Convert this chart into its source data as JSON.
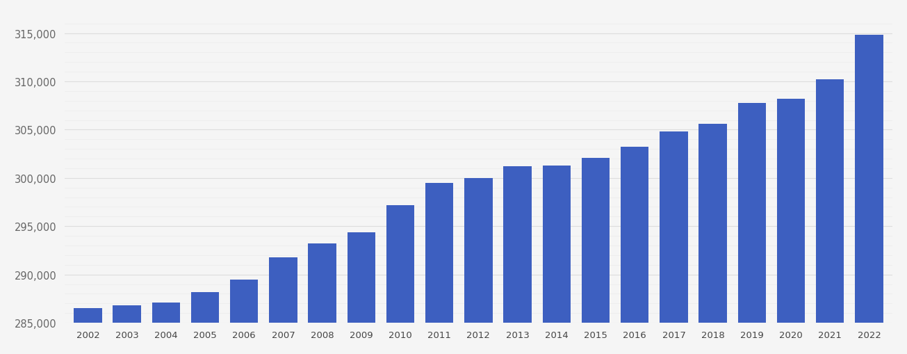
{
  "years": [
    2002,
    2003,
    2004,
    2005,
    2006,
    2007,
    2008,
    2009,
    2010,
    2011,
    2012,
    2013,
    2014,
    2015,
    2016,
    2017,
    2018,
    2019,
    2020,
    2021,
    2022
  ],
  "values": [
    286500,
    286800,
    287100,
    288200,
    289500,
    291800,
    293200,
    294400,
    297200,
    299500,
    300000,
    301200,
    301300,
    302100,
    303200,
    304800,
    305600,
    307800,
    308200,
    310200,
    314800
  ],
  "bar_color": "#3d5fc0",
  "background_color": "#f5f5f5",
  "grid_color": "#dddddd",
  "ylim": [
    285000,
    317000
  ],
  "yticks_major": [
    285000,
    290000,
    295000,
    300000,
    305000,
    310000,
    315000
  ],
  "yticks_minor": [
    286000,
    287000,
    288000,
    289000,
    291000,
    292000,
    293000,
    294000,
    296000,
    297000,
    298000,
    299000,
    301000,
    302000,
    303000,
    304000,
    306000,
    307000,
    308000,
    309000,
    311000,
    312000,
    313000,
    314000,
    316000
  ],
  "xlabel": "",
  "ylabel": "",
  "figsize": [
    13.05,
    5.1
  ],
  "dpi": 100
}
